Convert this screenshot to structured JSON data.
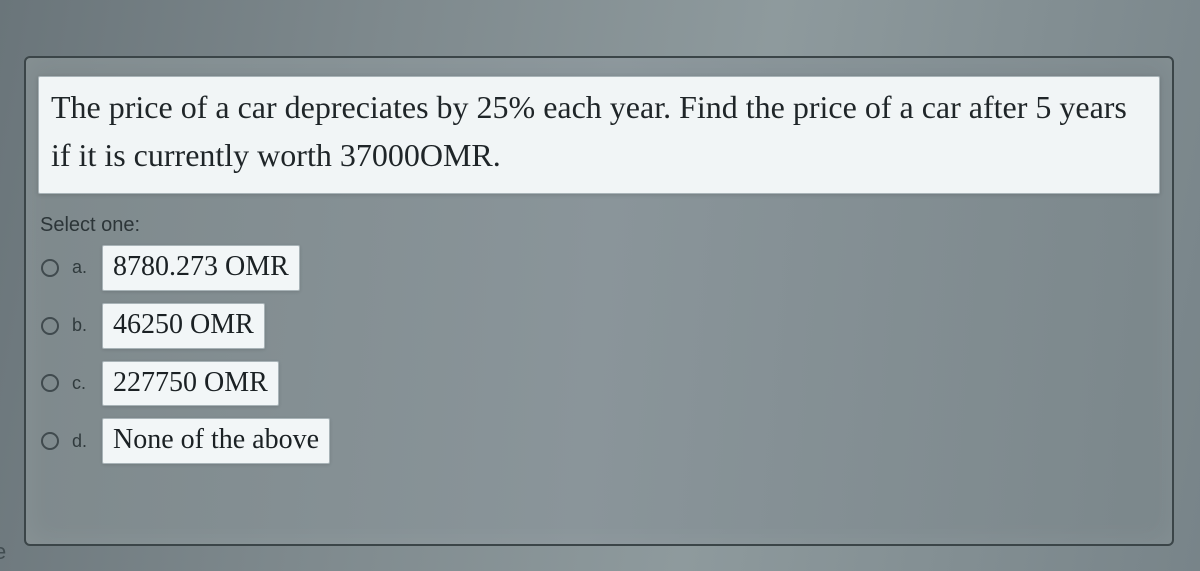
{
  "question": {
    "text": "The price of a car depreciates by 25% each year. Find the price of a car after 5 years if it is currently worth 37000OMR."
  },
  "prompt": "Select one:",
  "options": [
    {
      "letter": "a.",
      "value": "8780.273 OMR"
    },
    {
      "letter": "b.",
      "value": "46250 OMR"
    },
    {
      "letter": "c.",
      "value": "227750 OMR"
    },
    {
      "letter": "d.",
      "value": "None of the above"
    }
  ],
  "edge_fragment": "e",
  "colors": {
    "panel_border": "#3b4548",
    "card_bg": "#f1f5f6",
    "text": "#1f2528"
  }
}
